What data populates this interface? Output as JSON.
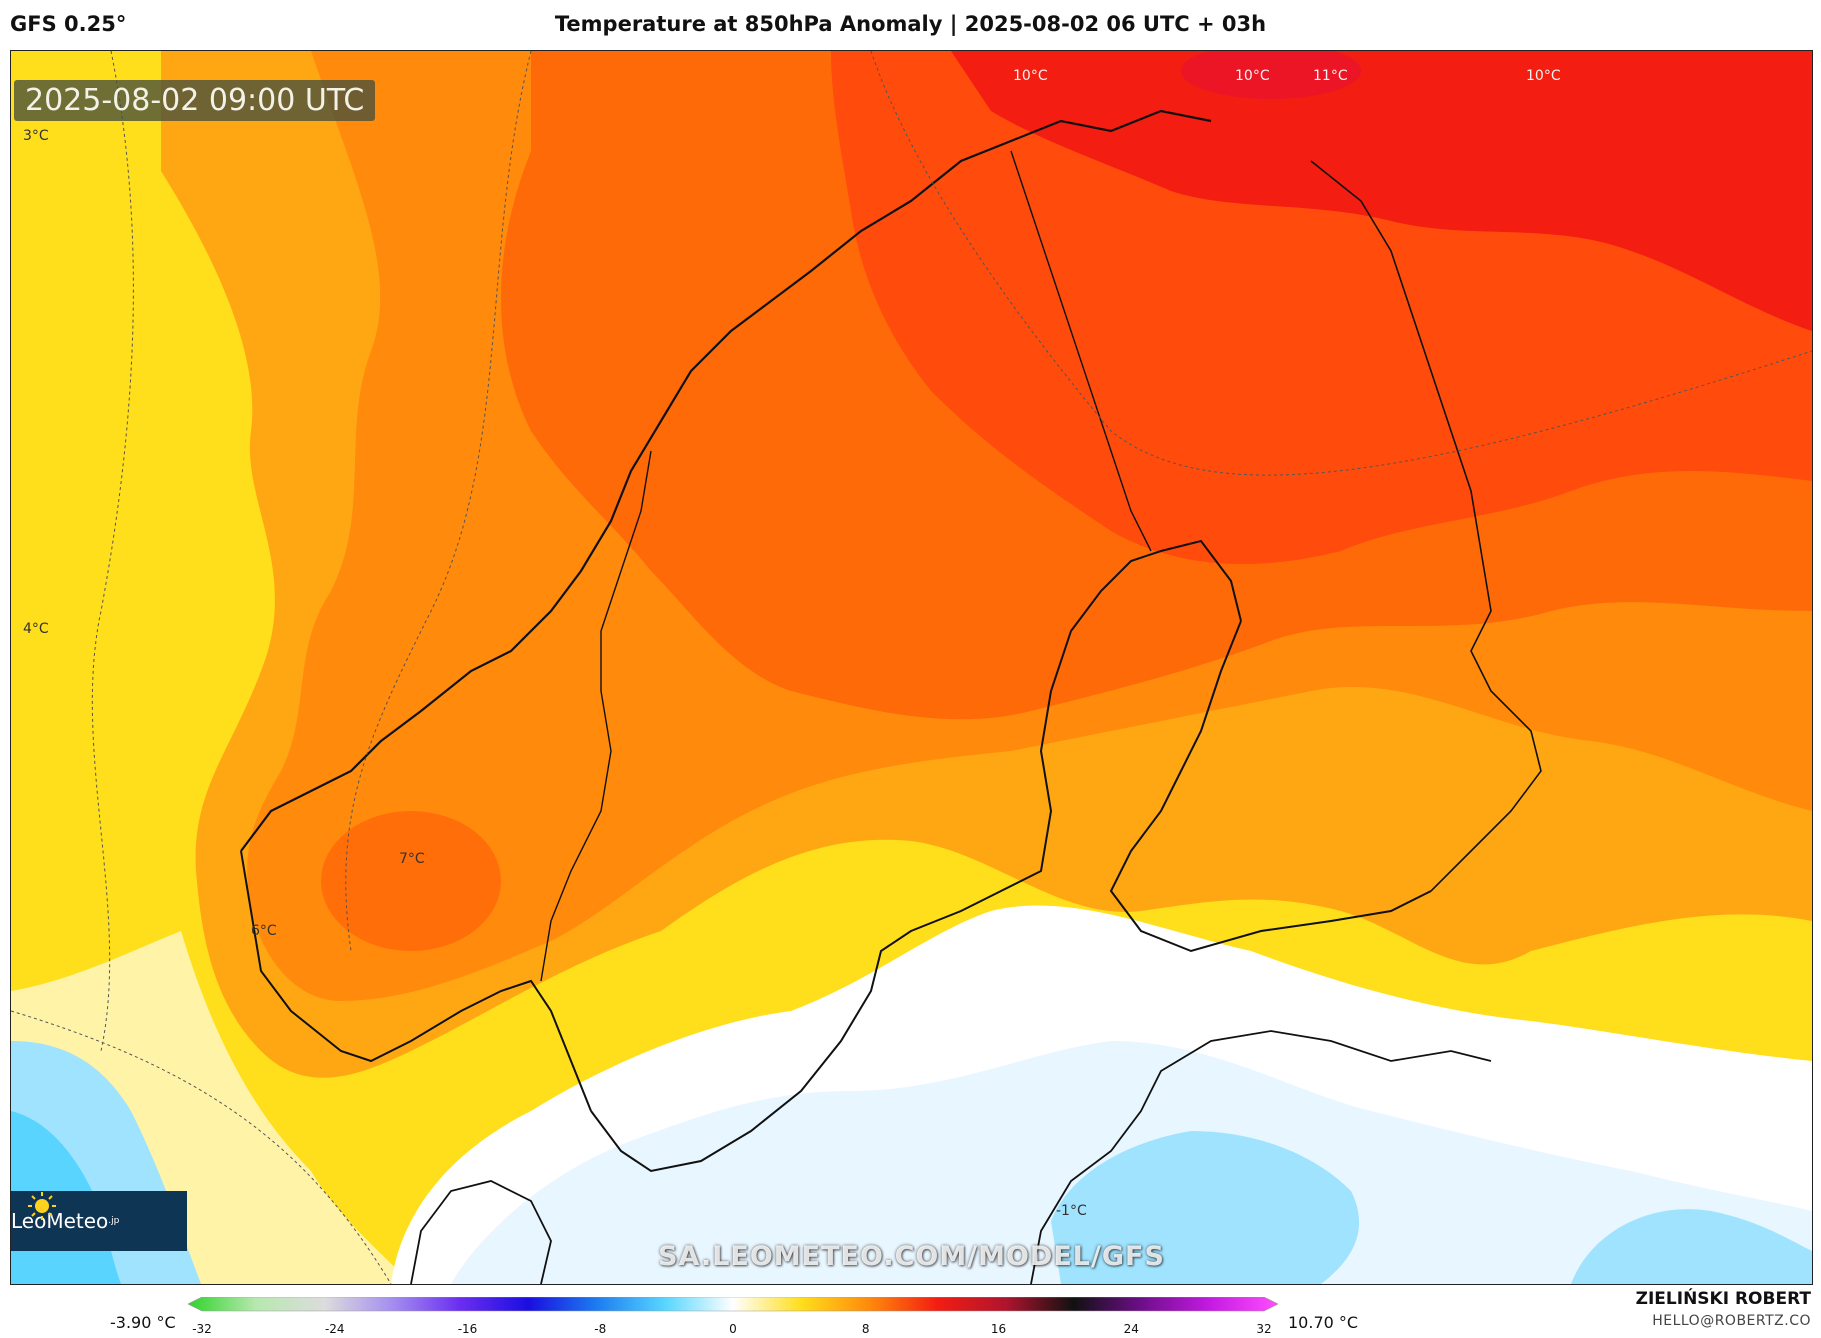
{
  "header": {
    "model": "GFS 0.25°",
    "title": "Temperature at 850hPa Anomaly | 2025-08-02 06 UTC + 03h"
  },
  "map": {
    "timestamp": "2025-08-02 09:00 UTC",
    "watermark": "SA.LEOMETEO.COM/MODEL/GFS",
    "logo_text": "LeoMeteo",
    "logo_suffix": ".jp",
    "labels": {
      "t1": "10°C",
      "t2": "10°C",
      "t3": "11°C",
      "t4": "10°C",
      "t5": "3°C",
      "t6": "4°C",
      "t7": "7°C",
      "t8": "6°C",
      "t9": "-1°C"
    },
    "colors": {
      "very_warm": "#f31d12",
      "warm_red": "#ff4b0c",
      "red_orange": "#ff6a08",
      "orange": "#ff8a0c",
      "orange_yellow": "#ffa712",
      "gold": "#ffc514",
      "yellow": "#ffde1c",
      "pale_yellow": "#fff3a8",
      "neutral": "#ffffff",
      "slightly_cold": "#e8f6ff",
      "cold": "#9fe3ff",
      "colder": "#58d4ff"
    }
  },
  "colorbar": {
    "min_label": "-3.90 °C",
    "max_label": "10.70 °C",
    "ticks": [
      "-32",
      "-24",
      "-16",
      "-8",
      "0",
      "8",
      "16",
      "24",
      "32"
    ],
    "stops": [
      "#30d32a",
      "#b7e8b0",
      "#dcdcdc",
      "#a48ef0",
      "#6a2df0",
      "#1a0ee0",
      "#1d7cf0",
      "#57d6ff",
      "#ffffff",
      "#ffde1c",
      "#ff8a0c",
      "#f31d12",
      "#b0142e",
      "#111111",
      "#6e0e8a",
      "#c41ae2",
      "#ff4dff"
    ]
  },
  "credits": {
    "author": "ZIELIŃSKI ROBERT",
    "email": "HELLO@ROBERTZ.CO"
  }
}
